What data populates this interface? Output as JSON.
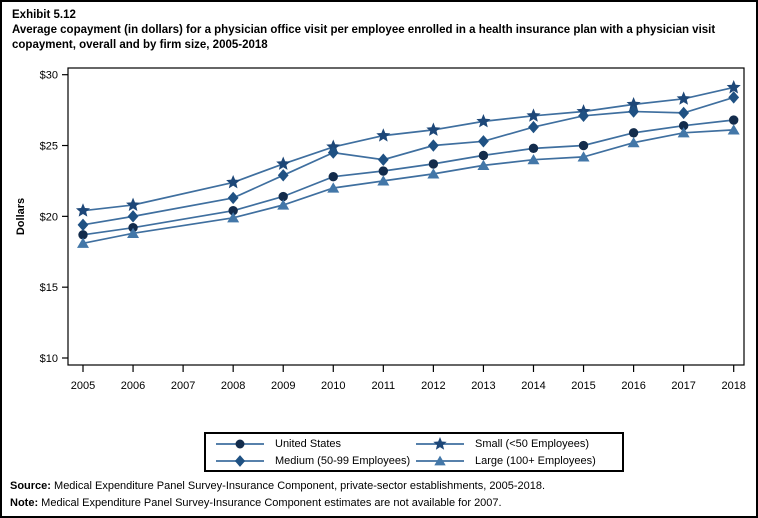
{
  "page": {
    "exhibit_label": "Exhibit 5.12",
    "title": "Average copayment (in dollars) for a physician office visit per employee enrolled in a health insurance plan with a physician visit copayment, overall and by firm size, 2005-2018"
  },
  "footer": {
    "source_label": "Source:",
    "source_text": " Medical Expenditure Panel Survey-Insurance Component, private-sector establishments, 2005-2018.",
    "note_label": "Note:",
    "note_text": " Medical Expenditure Panel Survey-Insurance Component estimates are not available for 2007."
  },
  "chart_data": {
    "type": "line",
    "title": "Average copayment (in dollars) for a physician office visit per employee enrolled in a health insurance plan with a physician visit copayment, overall and by firm size, 2005-2018",
    "xlabel": "",
    "ylabel": "Dollars",
    "ylim": [
      10,
      30
    ],
    "yticks": [
      10,
      15,
      20,
      25,
      30
    ],
    "ytick_labels": [
      "$10",
      "$15",
      "$20",
      "$25",
      "$30"
    ],
    "xticks": [
      2005,
      2006,
      2007,
      2008,
      2009,
      2010,
      2011,
      2012,
      2013,
      2014,
      2015,
      2016,
      2017,
      2018
    ],
    "note": "No estimates for 2007; lines connect 2006 to 2008 directly",
    "grid": false,
    "legend_position": "bottom-center-boxed",
    "line_color": "#3f6f9f",
    "x": [
      2005,
      2006,
      2008,
      2009,
      2010,
      2011,
      2012,
      2013,
      2014,
      2015,
      2016,
      2017,
      2018
    ],
    "series": [
      {
        "name": "United States",
        "marker": "circle",
        "marker_color": "#132c4c",
        "values": [
          18.7,
          19.2,
          20.4,
          21.4,
          22.8,
          23.2,
          23.7,
          24.3,
          24.8,
          25.0,
          25.9,
          26.4,
          26.8
        ]
      },
      {
        "name": "Small (<50 Employees)",
        "marker": "star",
        "marker_color": "#1d4778",
        "values": [
          20.4,
          20.8,
          22.4,
          23.7,
          24.9,
          25.7,
          26.1,
          26.7,
          27.1,
          27.4,
          27.9,
          28.3,
          29.1
        ]
      },
      {
        "name": "Medium (50-99 Employees)",
        "marker": "diamond",
        "marker_color": "#1f5183",
        "values": [
          19.4,
          20.0,
          21.3,
          22.9,
          24.5,
          24.0,
          25.0,
          25.3,
          26.3,
          27.1,
          27.4,
          27.3,
          28.4
        ]
      },
      {
        "name": "Large (100+ Employees)",
        "marker": "triangle",
        "marker_color": "#4377a8",
        "values": [
          18.1,
          18.8,
          19.9,
          20.8,
          22.0,
          22.5,
          23.0,
          23.6,
          24.0,
          24.2,
          25.2,
          25.9,
          26.1
        ]
      }
    ],
    "legend_order_row_major": [
      "United States",
      "Small (<50 Employees)",
      "Medium (50-99 Employees)",
      "Large (100+ Employees)"
    ]
  }
}
